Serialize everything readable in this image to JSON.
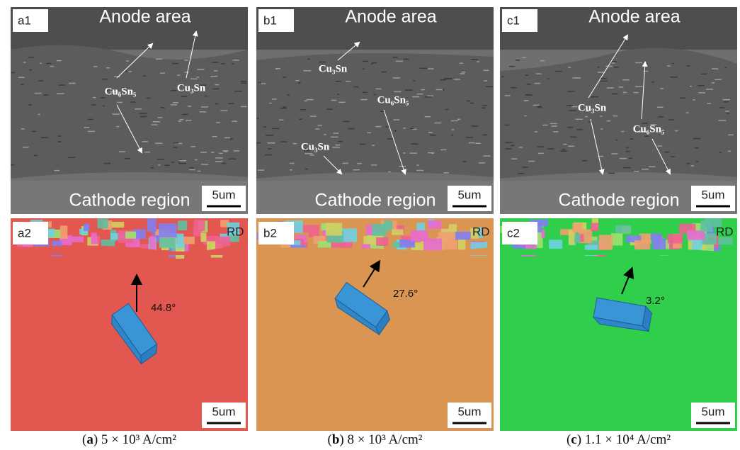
{
  "panels": [
    {
      "top": {
        "label": "a1",
        "anode": "Anode area",
        "cathode": "Cathode region",
        "scale": "5um",
        "annotations": [
          "Cu₆Sn₅",
          "Cu₃Sn"
        ]
      },
      "bottom": {
        "label": "a2",
        "rd": "RD",
        "angle": "44.8°",
        "scale": "5um"
      },
      "caption": [
        "(",
        "a",
        ") 5 × 10³ A/cm²"
      ]
    },
    {
      "top": {
        "label": "b1",
        "anode": "Anode area",
        "cathode": "Cathode region",
        "scale": "5um",
        "annotations": [
          "Cu₃Sn",
          "Cu₆Sn₅",
          "Cu₃Sn"
        ]
      },
      "bottom": {
        "label": "b2",
        "rd": "RD",
        "angle": "27.6°",
        "scale": "5um"
      },
      "caption": [
        "(",
        "b",
        ") 8 × 10³ A/cm²"
      ]
    },
    {
      "top": {
        "label": "c1",
        "anode": "Anode area",
        "cathode": "Cathode region",
        "scale": "5um",
        "annotations": [
          "Cu₃Sn",
          "Cu₆Sn₅"
        ]
      },
      "bottom": {
        "label": "c2",
        "rd": "RD",
        "angle": "3.2°",
        "scale": "5um"
      },
      "caption": [
        "(",
        "c",
        ") 1.1 × 10⁴ A/cm²"
      ]
    }
  ]
}
